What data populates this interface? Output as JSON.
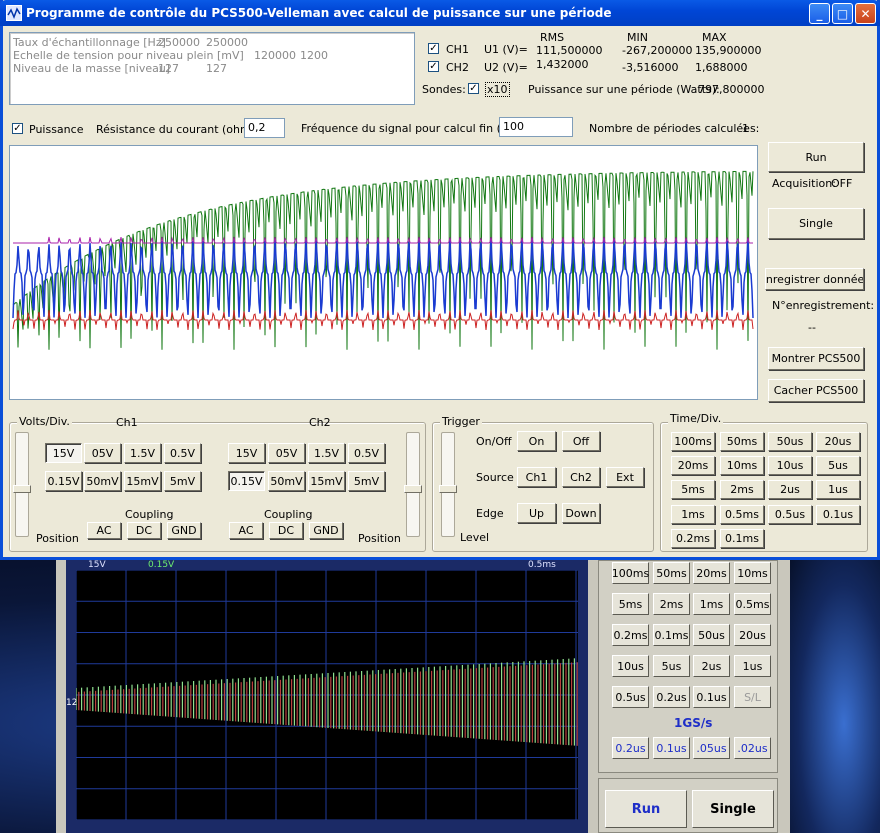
{
  "window": {
    "title": "Programme de contrôle du PCS500-Velleman avec calcul de puissance sur une période"
  },
  "info": {
    "rows": [
      [
        "Taux d'échantillonnage [Hz]",
        "250000",
        "250000"
      ],
      [
        "Echelle de tension pour niveau plein [mV]",
        "120000",
        "1200"
      ],
      [
        "Niveau de la masse [niveau]",
        "127",
        "127"
      ]
    ]
  },
  "measure": {
    "header_rms": "RMS",
    "header_min": "MIN",
    "header_max": "MAX",
    "ch1_label": "CH1",
    "ch1_var": "U1 (V)=",
    "ch1_rms": "111,500000",
    "ch1_min": "-267,200000",
    "ch1_max": "135,900000",
    "ch2_label": "CH2",
    "ch2_var": "U2 (V)=",
    "ch2_rms": "1,432000",
    "ch2_min": "-3,516000",
    "ch2_max": "1,688000",
    "sondes_label": "Sondes:",
    "x10_label": "x10",
    "power_label": "Puissance sur une période (Watts):",
    "power_value": "797,800000"
  },
  "options": {
    "puissance_label": "Puissance",
    "resistance_label": "Résistance du courant (ohms):",
    "resistance_value": "0,2",
    "freq_label": "Fréquence du signal pour calcul fin (Hz):",
    "freq_value": "100",
    "periods_label": "Nombre de périodes calculées:",
    "periods_value": "1"
  },
  "side": {
    "run": "Run",
    "acq_label": "Acquisition:",
    "acq_value": "OFF",
    "single": "Single",
    "save": "Enregistrer données",
    "reg_label": "N°enregistrement:",
    "reg_value": "--",
    "show": "Montrer PCS500",
    "hide": "Cacher PCS500"
  },
  "volts": {
    "title": "Volts/Div.",
    "ch1": "Ch1",
    "ch2": "Ch2",
    "ch1_row1": [
      "15V",
      "05V",
      "1.5V",
      "0.5V"
    ],
    "ch1_row2": [
      "0.15V",
      "50mV",
      "15mV",
      "5mV"
    ],
    "ch2_row1": [
      "15V",
      "05V",
      "1.5V",
      "0.5V"
    ],
    "ch2_row2": [
      "0.15V",
      "50mV",
      "15mV",
      "5mV"
    ],
    "coupling": "Coupling",
    "coupling_btns": [
      "AC",
      "DC",
      "GND"
    ],
    "position": "Position"
  },
  "trigger": {
    "title": "Trigger",
    "onoff": "On/Off",
    "on": "On",
    "off": "Off",
    "source": "Source",
    "src": [
      "Ch1",
      "Ch2",
      "Ext"
    ],
    "edge": "Edge",
    "up": "Up",
    "down": "Down",
    "level": "Level"
  },
  "timediv": {
    "title": "Time/Div.",
    "btns": [
      "100ms",
      "50ms",
      "50us",
      "20us",
      "20ms",
      "10ms",
      "10us",
      "5us",
      "5ms",
      "2ms",
      "2us",
      "1us",
      "1ms",
      "0.5ms",
      "0.5us",
      "0.1us",
      "0.2ms",
      "0.1ms"
    ]
  },
  "bg": {
    "top_left": "15V",
    "top_mid": "0.15V",
    "top_right": "0.5ms",
    "marker": "12",
    "tbtns": [
      "100ms",
      "50ms",
      "20ms",
      "10ms",
      "5ms",
      "2ms",
      "1ms",
      "0.5ms",
      "0.2ms",
      "0.1ms",
      "50us",
      "20us",
      "10us",
      "5us",
      "2us",
      "1us",
      "0.5us",
      "0.2us",
      "0.1us",
      "S/L"
    ],
    "rate": "1GS/s",
    "rbtns": [
      "0.2us",
      "0.1us",
      ".05us",
      ".02us"
    ],
    "run": "Run",
    "single": "Single"
  },
  "colors": {
    "ch1": "#117711",
    "ch2": "#1a3bd1",
    "power": "#cc2222",
    "purple": "#aa22aa"
  }
}
